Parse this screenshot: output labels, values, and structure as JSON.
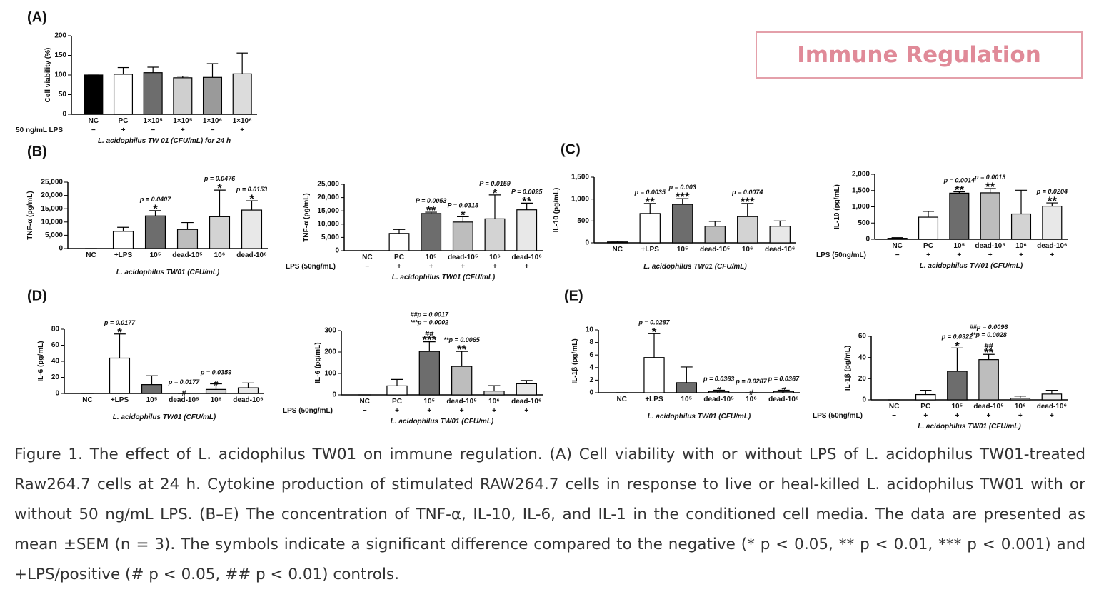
{
  "title_box": "Immune Regulation",
  "caption": "Figure 1. The effect of L. acidophilus TW01 on immune regulation. (A) Cell viability with or without LPS of L. acidophilus TW01-treated Raw264.7 cells at 24 h. Cytokine production of stimulated RAW264.7 cells in response to live or heal-killed L. acidophilus TW01 with or without 50 ng/mL LPS. (B–E) The concentration of TNF-α, IL-10, IL-6, and IL-1 in the conditioned cell media. The data are presented as mean ±SEM (n = 3). The symbols indicate a significant difference compared to the negative (* p < 0.05, ** p < 0.01, *** p < 0.001) and +LPS/positive (# p < 0.05, ## p < 0.01) controls.",
  "chart_data": [
    {
      "type": "bar",
      "panel": "(A)",
      "ylabel": "Cell viability (%)",
      "xlabel": "L. acidophilus TW 01 (CFU/mL) for 24 h",
      "categories": [
        "NC",
        "PC",
        "1×10⁵",
        "1×10⁵",
        "1×10⁶",
        "1×10⁶"
      ],
      "values": [
        100,
        102,
        106,
        93,
        94,
        103
      ],
      "errors": [
        0,
        17,
        14,
        4,
        35,
        53
      ],
      "colors": [
        "#000000",
        "#ffffff",
        "#6d6d6d",
        "#cfcfcf",
        "#9a9a9a",
        "#dcdcdc"
      ],
      "lps_label": "50 ng/mL LPS",
      "lps": [
        "−",
        "+",
        "−",
        "+",
        "−",
        "+"
      ],
      "annotations": [
        null,
        null,
        null,
        null,
        null,
        null
      ],
      "ylim": [
        0,
        200
      ],
      "yticks": [
        0,
        50,
        100,
        150,
        200
      ]
    },
    {
      "type": "bar",
      "panel": "(B)",
      "ylabel": "TNF-α (pg/mL)",
      "xlabel": "L. acidophilus TW01 (CFU/mL)",
      "categories": [
        "NC",
        "+LPS",
        "10⁵",
        "dead-10⁵",
        "10⁶",
        "dead-10⁶"
      ],
      "values": [
        0,
        6500,
        12300,
        7200,
        12000,
        14500
      ],
      "errors": [
        0,
        1500,
        2000,
        2600,
        10000,
        3500
      ],
      "colors": [
        "#ffffff",
        "#ffffff",
        "#6d6d6d",
        "#bdbdbd",
        "#d3d3d3",
        "#e8e8e8"
      ],
      "annotations": [
        null,
        null,
        [
          "p = 0.0407",
          "*"
        ],
        null,
        [
          "p = 0.0476",
          "*"
        ],
        [
          "p = 0.0153",
          "*"
        ]
      ],
      "ylim": [
        0,
        25000
      ],
      "yticks": [
        0,
        {
          "value": 5000,
          "label": "5,000"
        },
        {
          "value": 10000,
          "label": "10,000"
        },
        {
          "value": 15000,
          "label": "15,000"
        },
        {
          "value": 20000,
          "label": "20,000"
        },
        {
          "value": 25000,
          "label": "25,000"
        }
      ]
    },
    {
      "type": "bar",
      "ylabel": "TNF-α (pg/mL)",
      "xlabel": "L. acidophilus TW01 (CFU/mL)",
      "categories": [
        "NC",
        "PC",
        "10⁵",
        "dead-10⁵",
        "10⁶",
        "dead-10⁶"
      ],
      "values": [
        0,
        6500,
        14000,
        10800,
        12000,
        15400
      ],
      "errors": [
        0,
        1500,
        500,
        2000,
        9000,
        2500
      ],
      "colors": [
        "#ffffff",
        "#ffffff",
        "#6d6d6d",
        "#bdbdbd",
        "#d3d3d3",
        "#e8e8e8"
      ],
      "lps_label": "LPS (50ng/mL)",
      "lps": [
        "−",
        "+",
        "+",
        "+",
        "+",
        "+"
      ],
      "annotations": [
        null,
        null,
        [
          "P = 0.0053",
          "**"
        ],
        [
          "P = 0.0318",
          "*"
        ],
        [
          "P = 0.0159",
          "*"
        ],
        [
          "P = 0.0025",
          "**"
        ]
      ],
      "ylim": [
        0,
        25000
      ],
      "yticks": [
        0,
        {
          "value": 5000,
          "label": "5,000"
        },
        {
          "value": 10000,
          "label": "10,000"
        },
        {
          "value": 15000,
          "label": "15,000"
        },
        {
          "value": 20000,
          "label": "20,000"
        },
        {
          "value": 25000,
          "label": "25,000"
        }
      ]
    },
    {
      "type": "bar",
      "panel": "(C)",
      "ylabel": "IL-10 (pg/mL)",
      "xlabel": "L. acidophilus TW01 (CFU/mL)",
      "categories": [
        "NC",
        "+LPS",
        "10⁵",
        "dead-10⁵",
        "10⁶",
        "dead-10⁶"
      ],
      "values": [
        20,
        670,
        880,
        380,
        600,
        380
      ],
      "errors": [
        20,
        230,
        130,
        110,
        300,
        120
      ],
      "colors": [
        "#ffffff",
        "#ffffff",
        "#6d6d6d",
        "#bdbdbd",
        "#d3d3d3",
        "#e8e8e8"
      ],
      "annotations": [
        null,
        [
          "p = 0.0035",
          "**"
        ],
        [
          "p = 0.003",
          "***"
        ],
        null,
        [
          "p = 0.0074",
          "***"
        ],
        null
      ],
      "ylim": [
        0,
        1500
      ],
      "yticks": [
        0,
        500,
        {
          "value": 1000,
          "label": "1,000"
        },
        {
          "value": 1500,
          "label": "1,500"
        }
      ]
    },
    {
      "type": "bar",
      "ylabel": "IL-10 (pg/mL)",
      "xlabel": "L. acidophilus TW01 (CFU/mL)",
      "categories": [
        "NC",
        "PC",
        "10⁵",
        "dead-10⁵",
        "10⁶",
        "dead-10⁶"
      ],
      "values": [
        30,
        680,
        1420,
        1430,
        780,
        1020
      ],
      "errors": [
        20,
        180,
        40,
        130,
        730,
        100
      ],
      "colors": [
        "#ffffff",
        "#ffffff",
        "#6d6d6d",
        "#bdbdbd",
        "#d3d3d3",
        "#e8e8e8"
      ],
      "lps_label": "LPS (50ng/mL)",
      "lps": [
        "−",
        "+",
        "+",
        "+",
        "+",
        "+"
      ],
      "annotations": [
        null,
        null,
        [
          "p = 0.0014",
          "**"
        ],
        [
          "p = 0.0013",
          "**"
        ],
        null,
        [
          "p = 0.0204",
          "**"
        ]
      ],
      "ylim": [
        0,
        2000
      ],
      "yticks": [
        0,
        500,
        {
          "value": 1000,
          "label": "1,000"
        },
        {
          "value": 1500,
          "label": "1,500"
        },
        {
          "value": 2000,
          "label": "2,000"
        }
      ]
    },
    {
      "type": "bar",
      "panel": "(D)",
      "ylabel": "IL-6 (pg/mL)",
      "xlabel": "L. acidophilus TW01 (CFU/mL)",
      "categories": [
        "NC",
        "+LPS",
        "10⁵",
        "dead-10⁵",
        "10⁶",
        "dead-10⁶"
      ],
      "values": [
        0,
        44,
        11,
        0,
        5,
        7
      ],
      "errors": [
        0,
        30,
        11,
        0,
        7,
        6
      ],
      "colors": [
        "#ffffff",
        "#ffffff",
        "#6d6d6d",
        "#bdbdbd",
        "#d3d3d3",
        "#e8e8e8"
      ],
      "annotations": [
        null,
        [
          "p = 0.0177",
          "*"
        ],
        null,
        [
          "p = 0.0177",
          "#"
        ],
        [
          "p = 0.0359",
          "#"
        ],
        null
      ],
      "ylim": [
        0,
        80
      ],
      "yticks": [
        0,
        20,
        40,
        60,
        80
      ]
    },
    {
      "type": "bar",
      "ylabel": "IL-6 (pg/mL)",
      "xlabel": "L. acidophilus TW01 (CFU/mL)",
      "categories": [
        "NC",
        "PC",
        "10⁵",
        "dead-10⁵",
        "10⁶",
        "dead-10⁶"
      ],
      "values": [
        0,
        42,
        203,
        133,
        18,
        52
      ],
      "errors": [
        0,
        30,
        45,
        70,
        25,
        15
      ],
      "colors": [
        "#ffffff",
        "#ffffff",
        "#6d6d6d",
        "#bdbdbd",
        "#d3d3d3",
        "#e8e8e8"
      ],
      "lps_label": "LPS (50ng/mL)",
      "lps": [
        "−",
        "+",
        "+",
        "+",
        "+",
        "+"
      ],
      "annotations": [
        null,
        null,
        [
          "##p = 0.0017",
          "***p = 0.0002",
          "##",
          "***"
        ],
        [
          "**p = 0.0065",
          "**"
        ],
        null,
        null
      ],
      "ylim": [
        0,
        300
      ],
      "yticks": [
        0,
        100,
        200,
        300
      ]
    },
    {
      "type": "bar",
      "panel": "(E)",
      "ylabel": "IL-1β (pg/mL)",
      "xlabel": "L. acidophilus TW01 (CFU/mL)",
      "categories": [
        "NC",
        "+LPS",
        "10⁵",
        "dead-10⁵",
        "10⁶",
        "dead-10⁶"
      ],
      "values": [
        0,
        5.6,
        1.6,
        0.2,
        0,
        0.2
      ],
      "errors": [
        0,
        3.8,
        2.5,
        0.2,
        0,
        0.2
      ],
      "colors": [
        "#ffffff",
        "#ffffff",
        "#6d6d6d",
        "#bdbdbd",
        "#d3d3d3",
        "#e8e8e8"
      ],
      "annotations": [
        null,
        [
          "p = 0.0287",
          "*"
        ],
        null,
        [
          "p = 0.0363",
          "#"
        ],
        [
          "p = 0.0287",
          "#"
        ],
        [
          "p = 0.0367",
          "#"
        ]
      ],
      "ylim": [
        0,
        10
      ],
      "yticks": [
        0,
        2,
        4,
        6,
        8,
        10
      ]
    },
    {
      "type": "bar",
      "ylabel": "IL-1β (pg/mL)",
      "xlabel": "L. acidophilus TW01 (CFU/mL)",
      "categories": [
        "NC",
        "PC",
        "10⁵",
        "dead-10⁵",
        "10⁶",
        "dead-10⁶"
      ],
      "values": [
        0,
        5,
        27,
        38,
        1.5,
        5.5
      ],
      "errors": [
        0,
        4,
        22,
        5,
        2,
        3.5
      ],
      "colors": [
        "#ffffff",
        "#ffffff",
        "#6d6d6d",
        "#bdbdbd",
        "#d3d3d3",
        "#e8e8e8"
      ],
      "lps_label": "LPS (50ng/mL)",
      "lps": [
        "−",
        "+",
        "+",
        "+",
        "+",
        "+"
      ],
      "annotations": [
        null,
        null,
        [
          "p = 0.0322",
          "*"
        ],
        [
          "##p = 0.0096",
          "**p = 0.0028",
          "##",
          "**"
        ],
        null,
        null
      ],
      "ylim": [
        0,
        60
      ],
      "yticks": [
        0,
        20,
        40,
        60
      ]
    }
  ]
}
